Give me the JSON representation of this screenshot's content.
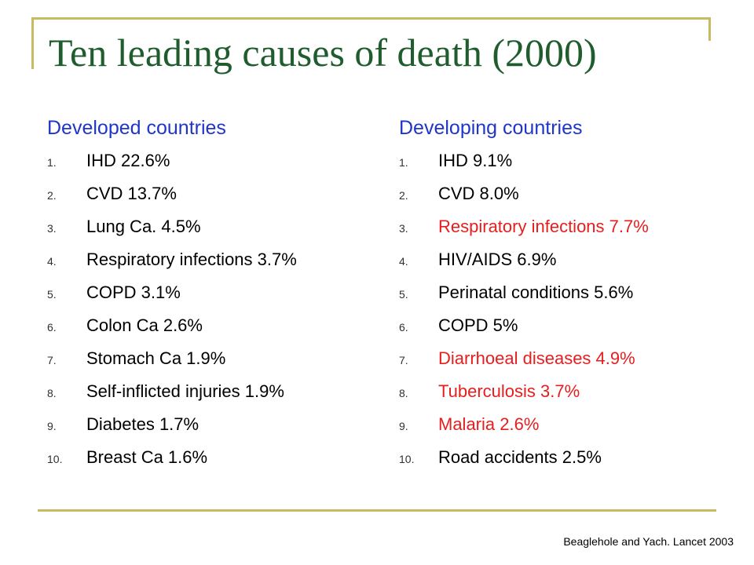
{
  "slide": {
    "title": "Ten leading causes of death (2000)",
    "citation": "Beaglehole and Yach. Lancet 2003",
    "colors": {
      "title": "#1f5c2e",
      "heading": "#1f36c8",
      "highlight": "#e61e1e",
      "rule": "#c8ba62"
    }
  },
  "developed": {
    "heading": "Developed countries",
    "items": [
      {
        "num": "1.",
        "text": "IHD 22.6%"
      },
      {
        "num": "2.",
        "text": "CVD 13.7%"
      },
      {
        "num": "3.",
        "text": "Lung Ca. 4.5%"
      },
      {
        "num": "4.",
        "text": "Respiratory infections 3.7%"
      },
      {
        "num": "5.",
        "text": "COPD 3.1%"
      },
      {
        "num": "6.",
        "text": "Colon Ca 2.6%"
      },
      {
        "num": "7.",
        "text": "Stomach Ca 1.9%"
      },
      {
        "num": "8.",
        "text": "Self-inflicted injuries 1.9%"
      },
      {
        "num": "9.",
        "text": "Diabetes 1.7%"
      },
      {
        "num": "10.",
        "text": "Breast Ca 1.6%"
      }
    ]
  },
  "developing": {
    "heading": "Developing countries",
    "items": [
      {
        "num": "1.",
        "text": "IHD 9.1%",
        "highlight": false
      },
      {
        "num": "2.",
        "text": "CVD 8.0%",
        "highlight": false
      },
      {
        "num": "3.",
        "text": "Respiratory infections 7.7%",
        "highlight": true
      },
      {
        "num": "4.",
        "text": "HIV/AIDS 6.9%",
        "highlight": false
      },
      {
        "num": "5.",
        "text": "Perinatal conditions 5.6%",
        "highlight": false
      },
      {
        "num": "6.",
        "text": "COPD 5%",
        "highlight": false
      },
      {
        "num": "7.",
        "text": "Diarrhoeal diseases 4.9%",
        "highlight": true
      },
      {
        "num": "8.",
        "text": "Tuberculosis 3.7%",
        "highlight": true
      },
      {
        "num": "9.",
        "text": "Malaria 2.6%",
        "highlight": true
      },
      {
        "num": "10.",
        "text": "Road accidents 2.5%",
        "highlight": false
      }
    ]
  }
}
